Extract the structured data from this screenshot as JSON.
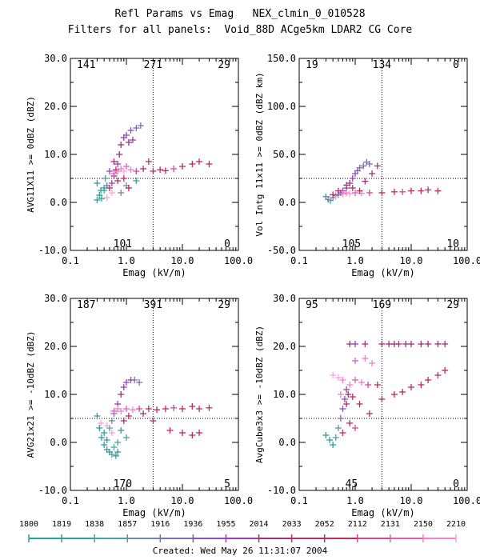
{
  "header": {
    "title": "Refl Params vs Emag   NEX_clmin_0_010528",
    "subtitle": "Filters for all panels:  Void_88D ACge5km LDAR2 CG Core",
    "created": "Created: Wed May 26 11:31:07 2004"
  },
  "colorbar": {
    "labels": [
      "1800",
      "1819",
      "1838",
      "1857",
      "1916",
      "1936",
      "1955",
      "2014",
      "2033",
      "2052",
      "2112",
      "2131",
      "2150",
      "2210"
    ],
    "colors": [
      "#2aa198",
      "#2e9e9a",
      "#4aa3a0",
      "#6a8fa0",
      "#7a6fb0",
      "#8a4fc0",
      "#9a3fb0",
      "#a0307a",
      "#b0306a",
      "#c02860",
      "#d04a90",
      "#e060b0",
      "#f080c8",
      "#ffa0d8"
    ]
  },
  "chart_data": [
    {
      "type": "scatter",
      "ylabel": "AVG11X11 >= 0dBZ (dBZ)",
      "xlabel": "Emag (kV/m)",
      "xscale": "log",
      "xlim": [
        0.1,
        100.0
      ],
      "ylim": [
        -10.0,
        30.0
      ],
      "xticks": [
        "0.1",
        "1.0",
        "10.0",
        "100.0"
      ],
      "yticks": [
        "-10.0",
        "0.0",
        "10.0",
        "20.0",
        "30.0"
      ],
      "threshold_x": 3.0,
      "threshold_y": 5.0,
      "counts": {
        "top_left": "141",
        "top_center": "271",
        "top_right": "29",
        "bottom_center": "101",
        "bottom_right": "0"
      },
      "points": [
        [
          0.3,
          4.0,
          1
        ],
        [
          0.33,
          1.5,
          0
        ],
        [
          0.36,
          0.8,
          0
        ],
        [
          0.4,
          2.5,
          2
        ],
        [
          0.42,
          5.0,
          3
        ],
        [
          0.45,
          3.5,
          4
        ],
        [
          0.5,
          6.5,
          5
        ],
        [
          0.55,
          4.0,
          6
        ],
        [
          0.6,
          5.5,
          7
        ],
        [
          0.65,
          6.8,
          8
        ],
        [
          0.7,
          8.0,
          6
        ],
        [
          0.75,
          10.0,
          7
        ],
        [
          0.8,
          12.0,
          7
        ],
        [
          0.9,
          13.5,
          6
        ],
        [
          1.0,
          14.0,
          5
        ],
        [
          1.1,
          12.5,
          7
        ],
        [
          1.2,
          15.0,
          5
        ],
        [
          1.3,
          13.0,
          6
        ],
        [
          1.5,
          15.5,
          4
        ],
        [
          1.8,
          16.0,
          4
        ],
        [
          0.5,
          3.0,
          8
        ],
        [
          0.6,
          6.0,
          11
        ],
        [
          0.7,
          6.5,
          12
        ],
        [
          0.8,
          7.0,
          12
        ],
        [
          0.9,
          6.5,
          13
        ],
        [
          1.0,
          7.5,
          11
        ],
        [
          1.2,
          6.8,
          12
        ],
        [
          1.5,
          6.5,
          10
        ],
        [
          2.0,
          7.0,
          8
        ],
        [
          3.0,
          6.5,
          9
        ],
        [
          4.0,
          6.8,
          8
        ],
        [
          5.0,
          6.6,
          9
        ],
        [
          7.0,
          7.0,
          10
        ],
        [
          10.0,
          7.5,
          9
        ],
        [
          15.0,
          8.0,
          9
        ],
        [
          20.0,
          8.5,
          9
        ],
        [
          30.0,
          8.0,
          9
        ],
        [
          0.8,
          2.0,
          3
        ],
        [
          1.0,
          3.5,
          3
        ],
        [
          1.5,
          4.5,
          2
        ],
        [
          0.3,
          0.5,
          1
        ],
        [
          0.35,
          2.5,
          0
        ],
        [
          0.4,
          3.0,
          0
        ],
        [
          0.45,
          1.0,
          13
        ],
        [
          0.55,
          2.0,
          13
        ],
        [
          0.7,
          4.5,
          8
        ],
        [
          0.9,
          5.0,
          9
        ],
        [
          1.1,
          3.0,
          9
        ],
        [
          2.5,
          8.5,
          8
        ],
        [
          0.6,
          8.5,
          7
        ]
      ]
    },
    {
      "type": "scatter",
      "ylabel": "Vol Intg 11x11 >= 0dBZ (dBZ km)",
      "xlabel": "Emag (kV/m)",
      "xscale": "log",
      "xlim": [
        0.1,
        100.0
      ],
      "ylim": [
        -50.0,
        150.0
      ],
      "xticks": [
        "0.1",
        "1.0",
        "10.0",
        "100.0"
      ],
      "yticks": [
        "-50.0",
        "0.0",
        "50.0",
        "100.0",
        "150.0"
      ],
      "threshold_x": 3.0,
      "threshold_y": 25.0,
      "counts": {
        "top_left": "19",
        "top_center": "134",
        "top_right": "0",
        "bottom_center": "105",
        "bottom_right": "10"
      },
      "points": [
        [
          0.3,
          6.0,
          1
        ],
        [
          0.33,
          3.0,
          0
        ],
        [
          0.36,
          2.0,
          0
        ],
        [
          0.4,
          5.0,
          2
        ],
        [
          0.45,
          7.0,
          3
        ],
        [
          0.5,
          8.0,
          4
        ],
        [
          0.55,
          10.0,
          5
        ],
        [
          0.6,
          12.0,
          6
        ],
        [
          0.7,
          15.0,
          6
        ],
        [
          0.8,
          20.0,
          7
        ],
        [
          0.9,
          25.0,
          6
        ],
        [
          1.0,
          30.0,
          5
        ],
        [
          1.1,
          33.0,
          5
        ],
        [
          1.2,
          36.0,
          4
        ],
        [
          1.4,
          38.0,
          4
        ],
        [
          1.6,
          42.0,
          4
        ],
        [
          1.8,
          40.0,
          4
        ],
        [
          2.5,
          38.0,
          7
        ],
        [
          0.6,
          9.0,
          12
        ],
        [
          0.7,
          10.0,
          12
        ],
        [
          0.8,
          9.0,
          13
        ],
        [
          1.0,
          10.0,
          11
        ],
        [
          1.3,
          9.5,
          12
        ],
        [
          1.8,
          10.0,
          10
        ],
        [
          3.0,
          10.0,
          9
        ],
        [
          5.0,
          11.0,
          9
        ],
        [
          7.0,
          11.0,
          10
        ],
        [
          10.0,
          12.0,
          9
        ],
        [
          15.0,
          12.0,
          9
        ],
        [
          20.0,
          13.0,
          9
        ],
        [
          30.0,
          12.0,
          9
        ],
        [
          0.35,
          4.0,
          13
        ],
        [
          0.45,
          6.0,
          13
        ],
        [
          0.9,
          15.0,
          8
        ],
        [
          1.5,
          22.0,
          7
        ],
        [
          2.0,
          30.0,
          7
        ],
        [
          0.5,
          12.0,
          8
        ],
        [
          0.7,
          18.0,
          8
        ],
        [
          0.4,
          8.0,
          9
        ],
        [
          1.2,
          12.0,
          9
        ]
      ]
    },
    {
      "type": "scatter",
      "ylabel": "AVG21x21 >= -10dBZ (dBZ)",
      "xlabel": "Emag (kV/m)",
      "xscale": "log",
      "xlim": [
        0.1,
        100.0
      ],
      "ylim": [
        -10.0,
        30.0
      ],
      "xticks": [
        "0.1",
        "1.0",
        "10.0",
        "100.0"
      ],
      "yticks": [
        "-10.0",
        "0.0",
        "10.0",
        "20.0",
        "30.0"
      ],
      "threshold_x": 3.0,
      "threshold_y": 5.0,
      "counts": {
        "top_left": "187",
        "top_center": "391",
        "top_right": "29",
        "bottom_center": "170",
        "bottom_right": "5"
      },
      "points": [
        [
          0.3,
          5.5,
          0
        ],
        [
          0.33,
          3.0,
          0
        ],
        [
          0.36,
          1.0,
          0
        ],
        [
          0.4,
          -0.5,
          1
        ],
        [
          0.45,
          -1.5,
          1
        ],
        [
          0.5,
          -2.0,
          1
        ],
        [
          0.55,
          -2.5,
          2
        ],
        [
          0.6,
          -1.0,
          2
        ],
        [
          0.65,
          -2.8,
          1
        ],
        [
          0.7,
          0.0,
          2
        ],
        [
          0.5,
          3.0,
          2
        ],
        [
          0.55,
          4.5,
          3
        ],
        [
          0.6,
          6.0,
          4
        ],
        [
          0.7,
          8.0,
          6
        ],
        [
          0.8,
          10.0,
          7
        ],
        [
          0.9,
          11.5,
          6
        ],
        [
          1.0,
          12.5,
          5
        ],
        [
          1.2,
          13.0,
          6
        ],
        [
          1.4,
          13.0,
          4
        ],
        [
          1.7,
          12.5,
          4
        ],
        [
          0.6,
          6.5,
          11
        ],
        [
          0.7,
          7.0,
          12
        ],
        [
          0.8,
          6.5,
          12
        ],
        [
          1.0,
          7.0,
          11
        ],
        [
          1.3,
          6.8,
          12
        ],
        [
          1.7,
          7.0,
          10
        ],
        [
          2.5,
          7.0,
          9
        ],
        [
          3.5,
          6.8,
          8
        ],
        [
          5.0,
          7.0,
          9
        ],
        [
          7.0,
          7.2,
          10
        ],
        [
          10.0,
          7.0,
          9
        ],
        [
          15.0,
          7.5,
          9
        ],
        [
          20.0,
          7.0,
          9
        ],
        [
          30.0,
          7.2,
          9
        ],
        [
          6.0,
          2.5,
          9
        ],
        [
          10.0,
          2.0,
          9
        ],
        [
          15.0,
          1.5,
          9
        ],
        [
          20.0,
          2.0,
          9
        ],
        [
          3.0,
          4.5,
          8
        ],
        [
          0.4,
          2.0,
          0
        ],
        [
          0.45,
          0.5,
          0
        ],
        [
          0.35,
          4.0,
          13
        ],
        [
          0.45,
          3.5,
          13
        ],
        [
          0.55,
          2.0,
          13
        ],
        [
          0.9,
          4.5,
          8
        ],
        [
          1.1,
          5.5,
          9
        ],
        [
          2.0,
          6.0,
          7
        ],
        [
          0.8,
          2.5,
          1
        ],
        [
          1.0,
          1.0,
          2
        ],
        [
          0.7,
          -2.0,
          1
        ]
      ]
    },
    {
      "type": "scatter",
      "ylabel": "AvgCube3x3 >= -10dBZ (dBZ)",
      "xlabel": "Emag (kV/m)",
      "xscale": "log",
      "xlim": [
        0.1,
        100.0
      ],
      "ylim": [
        -10.0,
        30.0
      ],
      "xticks": [
        "0.1",
        "1.0",
        "10.0",
        "100.0"
      ],
      "yticks": [
        "-10.0",
        "0.0",
        "10.0",
        "20.0",
        "30.0"
      ],
      "threshold_x": 3.0,
      "threshold_y": 5.0,
      "counts": {
        "top_left": "95",
        "top_center": "169",
        "top_right": "29",
        "bottom_center": "45",
        "bottom_right": "0"
      },
      "points": [
        [
          0.3,
          1.5,
          0
        ],
        [
          0.35,
          0.5,
          0
        ],
        [
          0.4,
          -0.5,
          1
        ],
        [
          0.45,
          1.0,
          2
        ],
        [
          0.5,
          3.0,
          3
        ],
        [
          0.55,
          5.0,
          4
        ],
        [
          0.6,
          7.0,
          5
        ],
        [
          0.65,
          9.0,
          6
        ],
        [
          0.7,
          11.0,
          6
        ],
        [
          0.75,
          10.0,
          7
        ],
        [
          0.8,
          20.5,
          7
        ],
        [
          1.0,
          20.5,
          6
        ],
        [
          1.5,
          20.5,
          7
        ],
        [
          3.0,
          20.5,
          7
        ],
        [
          4.0,
          20.5,
          7
        ],
        [
          5.0,
          20.5,
          7
        ],
        [
          6.0,
          20.5,
          7
        ],
        [
          8.0,
          20.5,
          7
        ],
        [
          10.0,
          20.5,
          7
        ],
        [
          15.0,
          20.5,
          7
        ],
        [
          20.0,
          20.5,
          7
        ],
        [
          30.0,
          20.5,
          7
        ],
        [
          40.0,
          20.5,
          7
        ],
        [
          0.6,
          13.0,
          12
        ],
        [
          0.8,
          12.0,
          12
        ],
        [
          1.0,
          13.0,
          11
        ],
        [
          1.3,
          12.5,
          12
        ],
        [
          1.7,
          12.0,
          10
        ],
        [
          2.5,
          12.0,
          9
        ],
        [
          1.0,
          17.0,
          11
        ],
        [
          1.5,
          17.5,
          12
        ],
        [
          2.0,
          16.5,
          12
        ],
        [
          0.4,
          14.0,
          13
        ],
        [
          0.5,
          13.5,
          13
        ],
        [
          0.55,
          10.0,
          12
        ],
        [
          0.7,
          8.0,
          8
        ],
        [
          0.9,
          9.5,
          9
        ],
        [
          1.2,
          8.0,
          9
        ],
        [
          1.8,
          6.0,
          8
        ],
        [
          3.0,
          9.0,
          9
        ],
        [
          5.0,
          10.0,
          9
        ],
        [
          7.0,
          10.5,
          9
        ],
        [
          10.0,
          11.5,
          9
        ],
        [
          15.0,
          12.0,
          9
        ],
        [
          20.0,
          13.0,
          9
        ],
        [
          30.0,
          14.0,
          9
        ],
        [
          40.0,
          15.0,
          9
        ],
        [
          0.6,
          2.0,
          8
        ],
        [
          0.8,
          4.0,
          9
        ],
        [
          1.0,
          3.0,
          10
        ]
      ]
    }
  ]
}
